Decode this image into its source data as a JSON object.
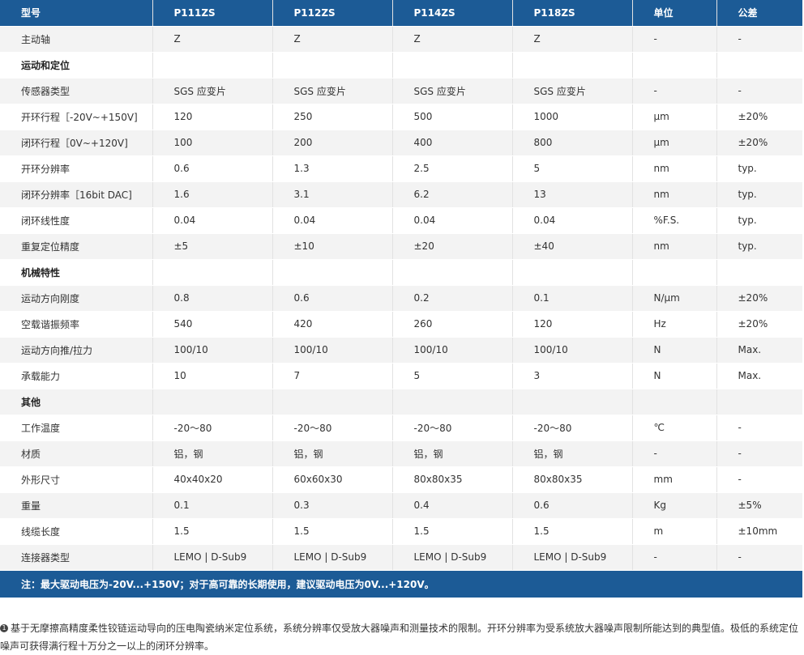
{
  "header": [
    "型号",
    "P111ZS",
    "P112ZS",
    "P114ZS",
    "P118ZS",
    "单位",
    "公差"
  ],
  "rows": [
    {
      "type": "data",
      "cells": [
        "主动轴",
        "Z",
        "Z",
        "Z",
        "Z",
        "-",
        "-"
      ]
    },
    {
      "type": "section",
      "label": "运动和定位"
    },
    {
      "type": "data",
      "cells": [
        "传感器类型",
        "SGS 应变片",
        "SGS 应变片",
        "SGS 应变片",
        "SGS 应变片",
        "-",
        "-"
      ]
    },
    {
      "type": "data",
      "cells": [
        "开环行程［-20V~+150V]",
        "120",
        "250",
        "500",
        "1000",
        "μm",
        "±20%"
      ]
    },
    {
      "type": "data",
      "cells": [
        "闭环行程［0V~+120V]",
        "100",
        "200",
        "400",
        "800",
        "μm",
        "±20%"
      ]
    },
    {
      "type": "data",
      "cells": [
        "开环分辨率",
        "0.6",
        "1.3",
        "2.5",
        "5",
        "nm",
        "typ."
      ]
    },
    {
      "type": "data",
      "cells": [
        "闭环分辨率［16bit DAC]",
        "1.6",
        "3.1",
        "6.2",
        "13",
        "nm",
        "typ."
      ]
    },
    {
      "type": "data",
      "cells": [
        "闭环线性度",
        "0.04",
        "0.04",
        "0.04",
        "0.04",
        "%F.S.",
        "typ."
      ]
    },
    {
      "type": "data",
      "cells": [
        "重复定位精度",
        "±5",
        "±10",
        "±20",
        "±40",
        "nm",
        "typ."
      ]
    },
    {
      "type": "section",
      "label": "机械特性"
    },
    {
      "type": "data",
      "cells": [
        "运动方向刚度",
        "0.8",
        "0.6",
        "0.2",
        "0.1",
        "N/μm",
        "±20%"
      ]
    },
    {
      "type": "data",
      "cells": [
        "空载谐振频率",
        "540",
        "420",
        "260",
        "120",
        "Hz",
        "±20%"
      ]
    },
    {
      "type": "data",
      "cells": [
        "运动方向推/拉力",
        "100/10",
        "100/10",
        "100/10",
        "100/10",
        "N",
        "Max."
      ]
    },
    {
      "type": "data",
      "cells": [
        "承载能力",
        "10",
        "7",
        "5",
        "3",
        "N",
        "Max."
      ]
    },
    {
      "type": "section",
      "label": "其他"
    },
    {
      "type": "data",
      "cells": [
        "工作温度",
        "-20～80",
        "-20～80",
        "-20～80",
        "-20～80",
        "℃",
        "-"
      ]
    },
    {
      "type": "data",
      "cells": [
        "材质",
        "铝，钢",
        "铝，钢",
        "铝，钢",
        "铝，钢",
        "-",
        "-"
      ]
    },
    {
      "type": "data",
      "cells": [
        "外形尺寸",
        "40x40x20",
        "60x60x30",
        "80x80x35",
        "80x80x35",
        "mm",
        "-"
      ]
    },
    {
      "type": "data",
      "cells": [
        "重量",
        "0.1",
        "0.3",
        "0.4",
        "0.6",
        "Kg",
        "±5%"
      ]
    },
    {
      "type": "data",
      "cells": [
        "线缆长度",
        "1.5",
        "1.5",
        "1.5",
        "1.5",
        "m",
        "±10mm"
      ]
    },
    {
      "type": "data",
      "cells": [
        "连接器类型",
        "LEMO | D-Sub9",
        "LEMO | D-Sub9",
        "LEMO | D-Sub9",
        "LEMO | D-Sub9",
        "-",
        "-"
      ]
    }
  ],
  "note": "注：最大驱动电压为-20V...+150V；对于高可靠的长期使用，建议驱动电压为0V...+120V。",
  "footnote": {
    "bullet": "1",
    "text": "基于无摩擦高精度柔性铰链运动导向的压电陶瓷纳米定位系统，系统分辨率仅受放大器噪声和测量技术的限制。开环分辨率为受系统放大器噪声限制所能达到的典型值。极低的系统定位噪声可获得满行程十万分之一以上的闭环分辨率。"
  }
}
